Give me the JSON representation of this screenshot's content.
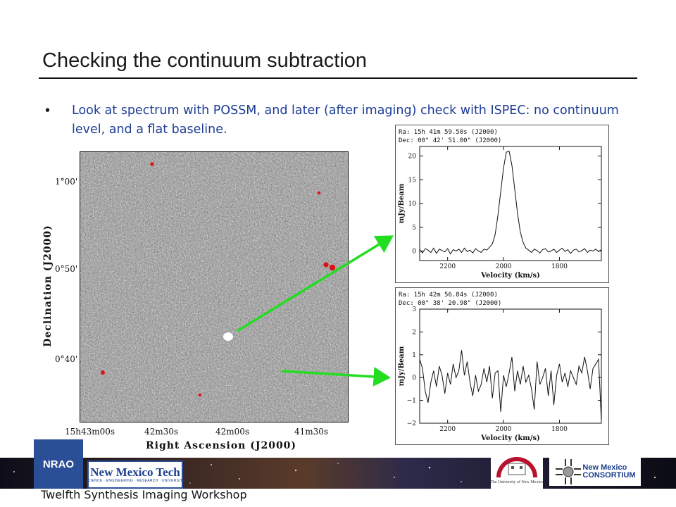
{
  "slide": {
    "title": "Checking the continuum subtraction",
    "bullet": "Look at spectrum with POSSM, and later (after imaging) check with ISPEC: no continuum level, and a flat baseline."
  },
  "map": {
    "dec_ticks": [
      "1°00'",
      "0°50'",
      "0°40'"
    ],
    "ra_ticks": [
      "15h43m00s",
      "42m30s",
      "42m00s",
      "41m30s"
    ],
    "xlabel": "Right Ascension (J2000)",
    "ylabel": "Declination (J2000)"
  },
  "spectrum_top": {
    "ra": "Ra: 15h 41m 59.50s (J2000)",
    "dec": "Dec: 00° 42' 51.00\" (J2000)"
  },
  "spectrum_bottom": {
    "ra": "Ra: 15h 42m 56.84s (J2000)",
    "dec": "Dec: 00° 38' 20.98\" (J2000)"
  },
  "footer": {
    "text": "Twelfth Synthesis Imaging Workshop",
    "nrao": "NRAO",
    "nmt_main": "New Mexico Tech",
    "nmt_sub": "SCIENCE · ENGINEERING · RESEARCH · UNIVERSITY",
    "unm": "The University of New Mexico",
    "nmc_1": "New Mexico",
    "nmc_2": "CONSORTIUM"
  },
  "colors": {
    "bullet_text": "#1f3d95",
    "arrow": "#22dd22",
    "source_marker": "#dd1111"
  },
  "chart_data": [
    {
      "type": "line",
      "title": "",
      "xlabel": "Velocity (km/s)",
      "ylabel": "mJy/Beam",
      "xlim": [
        2300,
        1650
      ],
      "ylim": [
        -2,
        22
      ],
      "xticks": [
        2200,
        2000,
        1800
      ],
      "yticks": [
        0,
        5,
        10,
        15,
        20
      ],
      "x": [
        2300,
        2290,
        2280,
        2270,
        2260,
        2250,
        2240,
        2230,
        2220,
        2210,
        2200,
        2190,
        2180,
        2170,
        2160,
        2150,
        2140,
        2130,
        2120,
        2110,
        2100,
        2090,
        2080,
        2070,
        2060,
        2050,
        2040,
        2030,
        2020,
        2010,
        2000,
        1990,
        1980,
        1970,
        1960,
        1950,
        1940,
        1930,
        1920,
        1910,
        1900,
        1890,
        1880,
        1870,
        1860,
        1850,
        1840,
        1830,
        1820,
        1810,
        1800,
        1790,
        1780,
        1770,
        1760,
        1750,
        1740,
        1730,
        1720,
        1710,
        1700,
        1690,
        1680,
        1670,
        1660,
        1650
      ],
      "y": [
        0.3,
        -0.4,
        0.5,
        0.2,
        -0.3,
        0.6,
        -0.5,
        0.4,
        0.1,
        -0.2,
        0.5,
        -0.6,
        0.3,
        0.0,
        0.4,
        -0.3,
        0.6,
        -0.1,
        0.2,
        -0.4,
        0.5,
        0.0,
        -0.3,
        0.4,
        0.2,
        0.8,
        1.5,
        3.5,
        7.5,
        12.5,
        17.5,
        20.8,
        21.0,
        18.0,
        13.0,
        8.0,
        4.0,
        1.8,
        0.6,
        0.2,
        -0.3,
        0.4,
        0.1,
        -0.4,
        0.3,
        0.5,
        -0.2,
        0.0,
        0.4,
        -0.3,
        0.2,
        0.6,
        -0.1,
        0.3,
        -0.5,
        0.2,
        0.4,
        -0.2,
        0.1,
        0.5,
        -0.3,
        0.2,
        0.0,
        0.4,
        -0.1,
        0.3
      ]
    },
    {
      "type": "line",
      "title": "",
      "xlabel": "Velocity (km/s)",
      "ylabel": "mJy/Beam",
      "xlim": [
        2300,
        1650
      ],
      "ylim": [
        -2,
        3
      ],
      "xticks": [
        2200,
        2000,
        1800
      ],
      "yticks": [
        -2,
        -1,
        0,
        1,
        2,
        3
      ],
      "x": [
        2300,
        2290,
        2280,
        2270,
        2260,
        2250,
        2240,
        2230,
        2220,
        2210,
        2200,
        2190,
        2180,
        2170,
        2160,
        2150,
        2140,
        2130,
        2120,
        2110,
        2100,
        2090,
        2080,
        2070,
        2060,
        2050,
        2040,
        2030,
        2020,
        2010,
        2000,
        1990,
        1980,
        1970,
        1960,
        1950,
        1940,
        1930,
        1920,
        1910,
        1900,
        1890,
        1880,
        1870,
        1860,
        1850,
        1840,
        1830,
        1820,
        1810,
        1800,
        1790,
        1780,
        1770,
        1760,
        1750,
        1740,
        1730,
        1720,
        1710,
        1700,
        1690,
        1680,
        1670,
        1660,
        1650
      ],
      "y": [
        0.8,
        0.4,
        -0.6,
        -1.1,
        -0.2,
        0.3,
        -0.4,
        0.5,
        0.1,
        -0.7,
        0.2,
        -0.3,
        0.6,
        0.0,
        0.3,
        1.2,
        0.1,
        0.7,
        -0.2,
        -0.8,
        0.1,
        -0.6,
        -0.3,
        0.4,
        -0.2,
        0.5,
        -0.9,
        0.2,
        0.3,
        -1.5,
        0.1,
        -0.4,
        0.2,
        0.9,
        -0.6,
        0.3,
        -0.3,
        0.5,
        -0.2,
        0.1,
        -0.5,
        -1.4,
        0.7,
        -0.3,
        0.0,
        0.4,
        -0.8,
        0.3,
        -1.2,
        0.1,
        0.6,
        -0.2,
        0.2,
        -0.4,
        0.3,
        0.0,
        -0.3,
        0.5,
        0.2,
        0.9,
        0.3,
        -0.5,
        0.4,
        0.6,
        0.8,
        -1.9
      ]
    }
  ]
}
